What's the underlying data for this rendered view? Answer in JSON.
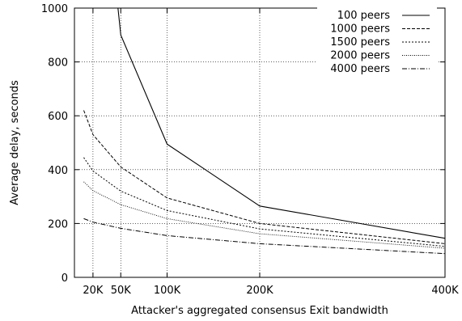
{
  "chart_data": {
    "type": "line",
    "title": "",
    "xlabel": "Attacker's aggregated consensus Exit bandwidth",
    "ylabel": "Average delay, seconds",
    "xlim": [
      0,
      400000
    ],
    "ylim": [
      0,
      1000
    ],
    "grid": true,
    "legend_position": "top-right",
    "x_ticks": [
      {
        "value": 20000,
        "label": "20K"
      },
      {
        "value": 50000,
        "label": "50K"
      },
      {
        "value": 100000,
        "label": "100K"
      },
      {
        "value": 200000,
        "label": "200K"
      },
      {
        "value": 400000,
        "label": "400K"
      }
    ],
    "y_ticks": [
      {
        "value": 0,
        "label": "0"
      },
      {
        "value": 200,
        "label": "200"
      },
      {
        "value": 400,
        "label": "400"
      },
      {
        "value": 600,
        "label": "600"
      },
      {
        "value": 800,
        "label": "800"
      },
      {
        "value": 1000,
        "label": "1000"
      }
    ],
    "series": [
      {
        "name": "100 peers",
        "dash": "",
        "stroke_width": 1.1,
        "x": [
          47000,
          50000,
          100000,
          200000,
          400000
        ],
        "values": [
          1000,
          900,
          495,
          265,
          145
        ]
      },
      {
        "name": "1000 peers",
        "dash": "4,2",
        "stroke_width": 1.0,
        "x": [
          10000,
          20000,
          50000,
          100000,
          200000,
          400000
        ],
        "values": [
          620,
          530,
          410,
          295,
          200,
          125
        ]
      },
      {
        "name": "1500 peers",
        "dash": "2,2",
        "stroke_width": 1.0,
        "x": [
          10000,
          20000,
          50000,
          100000,
          200000,
          400000
        ],
        "values": [
          445,
          395,
          320,
          248,
          180,
          115
        ]
      },
      {
        "name": "2000 peers",
        "dash": "1,1.5",
        "stroke_width": 0.9,
        "x": [
          10000,
          20000,
          50000,
          100000,
          200000,
          400000
        ],
        "values": [
          355,
          322,
          270,
          218,
          162,
          108
        ]
      },
      {
        "name": "4000 peers",
        "dash": "6,2,1,2",
        "stroke_width": 1.0,
        "x": [
          10000,
          20000,
          50000,
          100000,
          200000,
          400000
        ],
        "values": [
          218,
          205,
          182,
          155,
          125,
          88
        ]
      }
    ]
  }
}
